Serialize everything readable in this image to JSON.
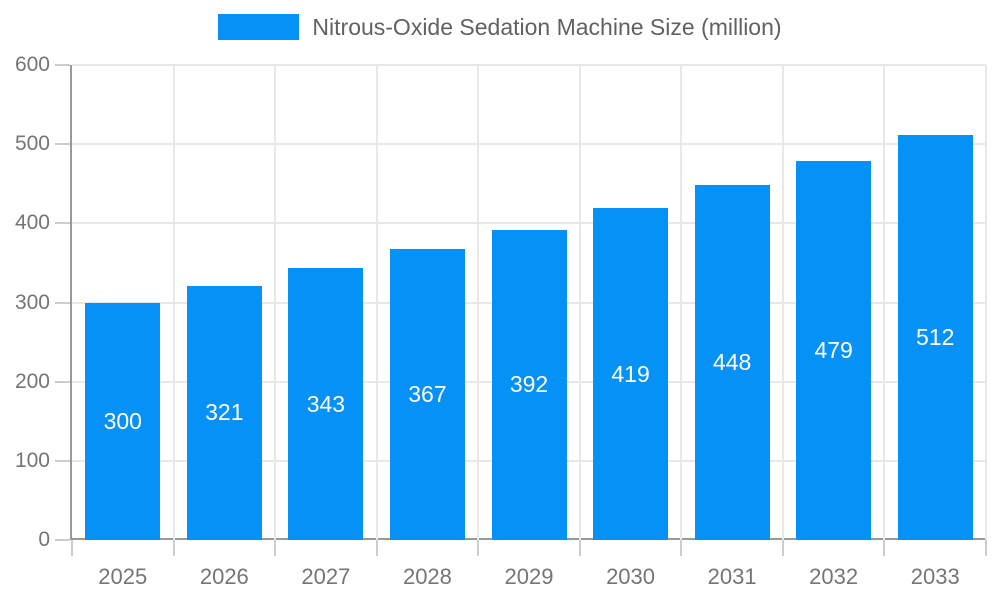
{
  "chart_data": {
    "type": "bar",
    "title": "Nitrous-Oxide Sedation Machine Size (million)",
    "categories": [
      "2025",
      "2026",
      "2027",
      "2028",
      "2029",
      "2030",
      "2031",
      "2032",
      "2033"
    ],
    "values": [
      300,
      321,
      343,
      367,
      392,
      419,
      448,
      479,
      512
    ],
    "xlabel": "",
    "ylabel": "",
    "ylim": [
      0,
      600
    ],
    "ytick_interval": 100,
    "ytick_labels": [
      "0",
      "100",
      "200",
      "300",
      "400",
      "500",
      "600"
    ],
    "grid": true,
    "legend_position": "top",
    "value_labels": "inside-center"
  },
  "colors": {
    "bar": "#0591f5",
    "bar_value_label": "#ffffff",
    "axis_line": "#999999",
    "gridline": "#e8e8e8",
    "tick": "#cccccc",
    "axis_label": "#757575",
    "legend_text": "#616161",
    "background": "#ffffff"
  }
}
